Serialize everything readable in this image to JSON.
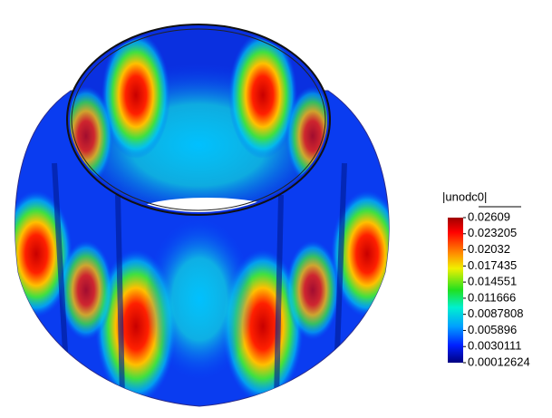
{
  "legend": {
    "title": "|unodc0|",
    "labels": [
      "0.02609",
      "0.023205",
      "0.02032",
      "0.017435",
      "0.014551",
      "0.011666",
      "0.0087808",
      "0.005896",
      "0.0030111",
      "0.00012624"
    ]
  }
}
